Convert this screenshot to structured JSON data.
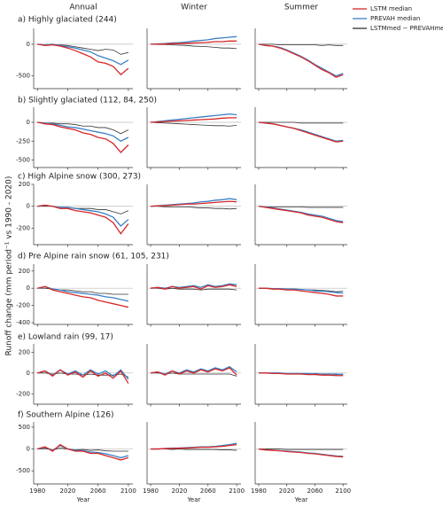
{
  "chart_data": {
    "type": "line",
    "column_titles": [
      "Annual",
      "Winter",
      "Summer"
    ],
    "xlabel": "Year",
    "ylabel": "Runoff change (mm period⁻¹ vs 1990 - 2020)",
    "x": [
      1980,
      1990,
      2000,
      2010,
      2020,
      2030,
      2040,
      2050,
      2060,
      2070,
      2080,
      2090,
      2100
    ],
    "xlim": [
      1975,
      2106
    ],
    "xticks": [
      1980,
      2020,
      2060,
      2100
    ],
    "hline": 0,
    "series": [
      {
        "name": "LSTM median",
        "color": "#d62728"
      },
      {
        "name": "PREVAH median",
        "color": "#3a7fc4"
      },
      {
        "name": "LSTMmed − PREVAHmed",
        "color": "#333333"
      }
    ],
    "rows": [
      {
        "title": "a) Highly glaciated (244)",
        "ylim": [
          -700,
          250
        ],
        "yticks": [
          -500,
          0
        ],
        "values": [
          [
            [
              0,
              -20,
              -10,
              -30,
              -60,
              -100,
              -150,
              -200,
              -280,
              -300,
              -350,
              -480,
              -380
            ],
            [
              0,
              0,
              5,
              10,
              10,
              15,
              20,
              25,
              30,
              40,
              40,
              50,
              50
            ],
            [
              0,
              -20,
              -30,
              -60,
              -100,
              -150,
              -200,
              -260,
              -330,
              -400,
              -450,
              -520,
              -480
            ]
          ],
          [
            [
              0,
              -10,
              0,
              -20,
              -40,
              -60,
              -90,
              -120,
              -180,
              -220,
              -260,
              -320,
              -250
            ],
            [
              0,
              5,
              10,
              20,
              25,
              35,
              50,
              60,
              70,
              90,
              100,
              110,
              120
            ],
            [
              0,
              -20,
              -30,
              -50,
              -90,
              -140,
              -190,
              -250,
              -320,
              -380,
              -440,
              -500,
              -460
            ]
          ],
          [
            [
              0,
              -10,
              -10,
              -10,
              -20,
              -40,
              -60,
              -80,
              -100,
              -80,
              -90,
              -160,
              -130
            ],
            [
              0,
              -5,
              -5,
              -10,
              -15,
              -20,
              -30,
              -35,
              -40,
              -50,
              -60,
              -60,
              -70
            ],
            [
              0,
              0,
              0,
              -10,
              -10,
              -10,
              -10,
              -10,
              -10,
              -20,
              -10,
              -20,
              -20
            ]
          ]
        ]
      },
      {
        "title": "b) Slightly glaciated (112, 84, 250)",
        "ylim": [
          -600,
          200
        ],
        "yticks": [
          -500,
          -250,
          0
        ],
        "values": [
          [
            [
              0,
              -20,
              -30,
              -60,
              -80,
              -100,
              -140,
              -160,
              -200,
              -220,
              -280,
              -400,
              -300
            ],
            [
              0,
              5,
              10,
              15,
              20,
              25,
              30,
              35,
              40,
              45,
              55,
              60,
              60
            ],
            [
              0,
              -10,
              -20,
              -40,
              -60,
              -80,
              -110,
              -140,
              -170,
              -200,
              -230,
              -260,
              -250
            ]
          ],
          [
            [
              0,
              -10,
              -20,
              -40,
              -60,
              -70,
              -90,
              -110,
              -130,
              -150,
              -180,
              -250,
              -200
            ],
            [
              0,
              10,
              20,
              30,
              40,
              50,
              60,
              70,
              80,
              90,
              100,
              110,
              100
            ],
            [
              0,
              -10,
              -20,
              -40,
              -60,
              -80,
              -100,
              -130,
              -160,
              -190,
              -220,
              -250,
              -240
            ]
          ],
          [
            [
              0,
              -10,
              -10,
              -20,
              -20,
              -30,
              -50,
              -50,
              -70,
              -70,
              -100,
              -150,
              -100
            ],
            [
              0,
              -5,
              -10,
              -15,
              -20,
              -25,
              -30,
              -35,
              -40,
              -45,
              -45,
              -50,
              -40
            ],
            [
              0,
              0,
              0,
              0,
              0,
              0,
              -10,
              -10,
              -10,
              -10,
              -10,
              -10,
              -10
            ]
          ]
        ]
      },
      {
        "title": "c) High Alpine snow (300, 273)",
        "ylim": [
          -350,
          200
        ],
        "yticks": [
          -200,
          0,
          200
        ],
        "values": [
          [
            [
              0,
              10,
              0,
              -20,
              -20,
              -40,
              -50,
              -60,
              -80,
              -100,
              -150,
              -250,
              -160
            ],
            [
              0,
              5,
              5,
              10,
              15,
              20,
              20,
              25,
              30,
              35,
              40,
              45,
              40
            ],
            [
              0,
              -10,
              -20,
              -30,
              -40,
              -50,
              -60,
              -80,
              -90,
              -100,
              -120,
              -140,
              -150
            ]
          ],
          [
            [
              0,
              10,
              0,
              -10,
              -10,
              -20,
              -30,
              -40,
              -50,
              -70,
              -100,
              -180,
              -120
            ],
            [
              0,
              5,
              10,
              15,
              20,
              25,
              30,
              40,
              45,
              55,
              60,
              70,
              60
            ],
            [
              0,
              -5,
              -15,
              -25,
              -35,
              -45,
              -55,
              -70,
              -80,
              -90,
              -110,
              -130,
              -140
            ]
          ],
          [
            [
              0,
              0,
              0,
              -10,
              -10,
              -20,
              -20,
              -20,
              -30,
              -30,
              -50,
              -70,
              -40
            ],
            [
              0,
              0,
              -5,
              -5,
              -5,
              -5,
              -10,
              -15,
              -15,
              -20,
              -20,
              -25,
              -20
            ],
            [
              0,
              -5,
              -5,
              -5,
              -5,
              -5,
              -5,
              -10,
              -10,
              -10,
              -10,
              -10,
              -10
            ]
          ]
        ]
      },
      {
        "title": "d) Pre Alpine rain snow (61, 105, 231)",
        "ylim": [
          -420,
          280
        ],
        "yticks": [
          -400,
          -200,
          0,
          200
        ],
        "values": [
          [
            [
              0,
              20,
              -20,
              -40,
              -60,
              -80,
              -100,
              -110,
              -140,
              -160,
              -180,
              -200,
              -220
            ],
            [
              0,
              10,
              -10,
              20,
              0,
              10,
              20,
              -10,
              30,
              10,
              20,
              40,
              20
            ],
            [
              0,
              0,
              -10,
              -10,
              -20,
              -20,
              -30,
              -40,
              -50,
              -60,
              -70,
              -90,
              -90
            ]
          ],
          [
            [
              0,
              20,
              -10,
              -20,
              -40,
              -50,
              -60,
              -70,
              -80,
              -100,
              -110,
              -130,
              -150
            ],
            [
              0,
              10,
              0,
              20,
              10,
              20,
              30,
              10,
              40,
              20,
              30,
              50,
              40
            ],
            [
              0,
              0,
              -5,
              -5,
              -10,
              -10,
              -15,
              -20,
              -30,
              -35,
              -40,
              -50,
              -55
            ]
          ],
          [
            [
              0,
              0,
              -10,
              -20,
              -20,
              -30,
              -40,
              -40,
              -60,
              -60,
              -70,
              -70,
              -70
            ],
            [
              0,
              0,
              -10,
              0,
              -10,
              -10,
              -10,
              -20,
              -10,
              -10,
              -10,
              -10,
              -20
            ],
            [
              0,
              0,
              -5,
              -5,
              -10,
              -10,
              -15,
              -20,
              -20,
              -25,
              -30,
              -40,
              -35
            ]
          ]
        ]
      },
      {
        "title": "e) Lowland rain (99, 17)",
        "ylim": [
          -300,
          280
        ],
        "yticks": [
          -200,
          0,
          200
        ],
        "values": [
          [
            [
              0,
              20,
              -30,
              30,
              -20,
              10,
              -40,
              20,
              -30,
              0,
              -50,
              20,
              -100
            ],
            [
              0,
              10,
              -20,
              20,
              -10,
              20,
              0,
              30,
              10,
              40,
              20,
              50,
              -20
            ],
            [
              0,
              0,
              -5,
              -5,
              -10,
              -10,
              -10,
              -15,
              -15,
              -20,
              -20,
              -25,
              -25
            ]
          ],
          [
            [
              0,
              20,
              -20,
              30,
              -10,
              20,
              -20,
              30,
              -10,
              20,
              -30,
              30,
              -60
            ],
            [
              0,
              10,
              -10,
              20,
              0,
              30,
              10,
              40,
              20,
              50,
              30,
              60,
              10
            ],
            [
              0,
              0,
              0,
              0,
              -5,
              -5,
              -5,
              -5,
              -10,
              -10,
              -10,
              -10,
              -15
            ]
          ],
          [
            [
              0,
              0,
              -10,
              0,
              -10,
              -10,
              -20,
              -10,
              -20,
              -20,
              -20,
              -10,
              -40
            ],
            [
              0,
              0,
              -10,
              0,
              -10,
              -10,
              -10,
              -10,
              -10,
              -10,
              -10,
              -10,
              -30
            ],
            [
              0,
              0,
              -5,
              -5,
              -5,
              -5,
              -5,
              -10,
              -5,
              -10,
              -10,
              -15,
              -10
            ]
          ]
        ]
      },
      {
        "title": "f) Southern Alpine (126)",
        "ylim": [
          -800,
          620
        ],
        "yticks": [
          -500,
          0,
          500
        ],
        "values": [
          [
            [
              0,
              50,
              -50,
              100,
              0,
              -50,
              -50,
              -100,
              -100,
              -150,
              -200,
              -250,
              -200
            ],
            [
              0,
              0,
              10,
              10,
              20,
              20,
              30,
              40,
              40,
              50,
              60,
              80,
              100
            ],
            [
              0,
              -20,
              -30,
              -40,
              -60,
              -70,
              -80,
              -100,
              -110,
              -130,
              -150,
              -170,
              -180
            ]
          ],
          [
            [
              0,
              40,
              -30,
              80,
              0,
              -30,
              -40,
              -70,
              -80,
              -110,
              -150,
              -200,
              -150
            ],
            [
              0,
              0,
              10,
              20,
              20,
              30,
              40,
              50,
              50,
              60,
              80,
              100,
              130
            ],
            [
              0,
              -20,
              -30,
              -40,
              -50,
              -60,
              -70,
              -90,
              -100,
              -120,
              -140,
              -160,
              -170
            ]
          ],
          [
            [
              0,
              10,
              -20,
              20,
              0,
              -20,
              -10,
              -30,
              -20,
              -40,
              -50,
              -50,
              -50
            ],
            [
              0,
              0,
              0,
              -10,
              0,
              -10,
              -10,
              -10,
              -10,
              -10,
              -20,
              -20,
              -30
            ],
            [
              0,
              0,
              0,
              0,
              -10,
              -10,
              -10,
              -10,
              -10,
              -10,
              -10,
              -10,
              -10
            ]
          ]
        ]
      }
    ]
  }
}
